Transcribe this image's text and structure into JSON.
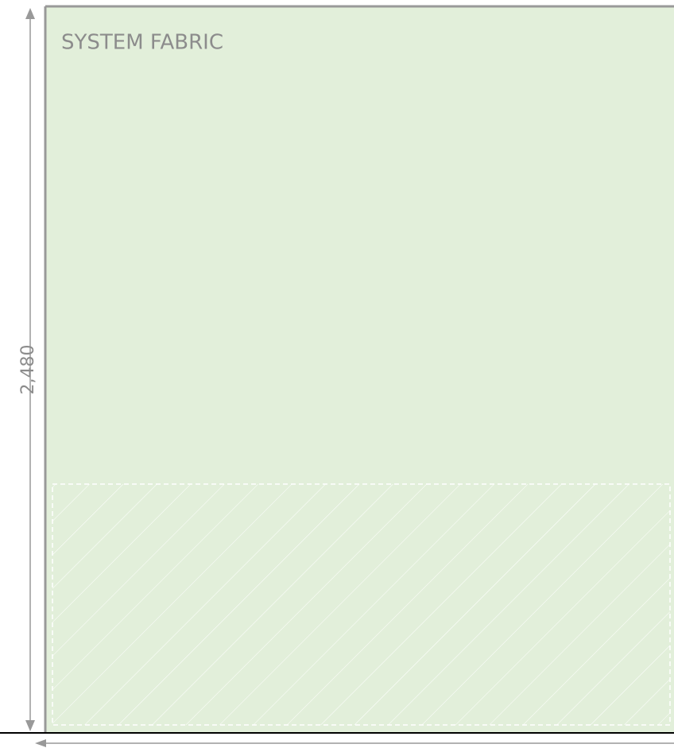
{
  "title": "SYSTEM FABRIC",
  "dimension": "2,480"
}
